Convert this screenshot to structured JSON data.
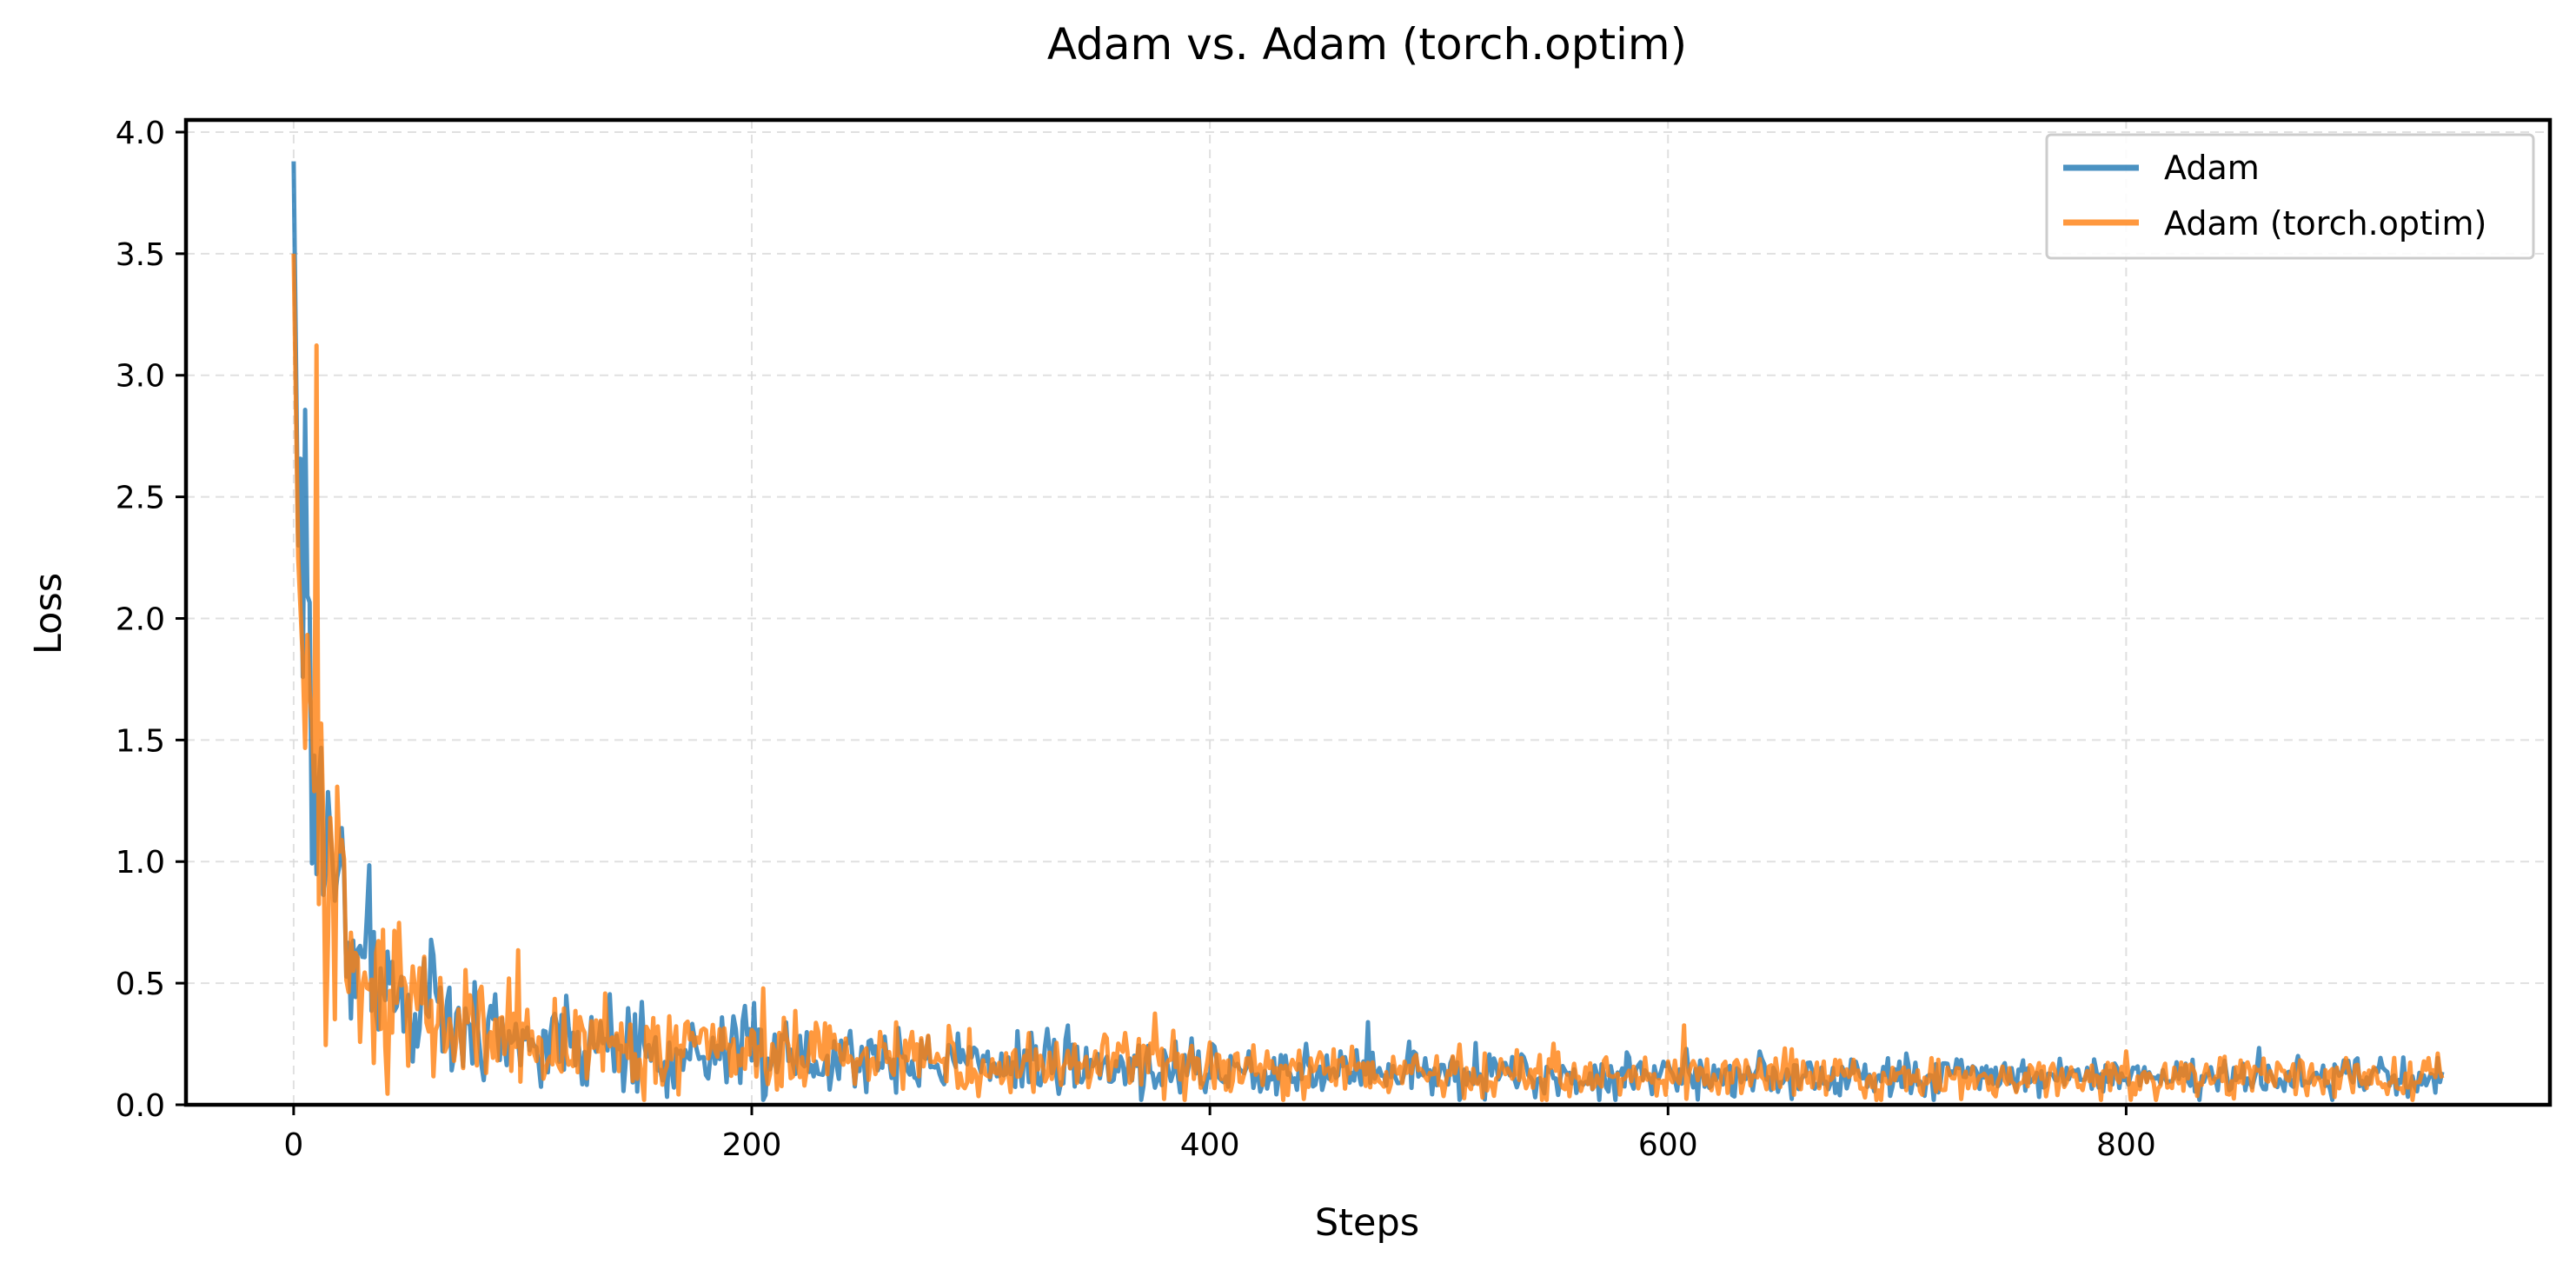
{
  "chart_data": {
    "type": "line",
    "title": "Adam vs. Adam (torch.optim)",
    "xlabel": "Steps",
    "ylabel": "Loss",
    "xlim": [
      -47,
      985
    ],
    "ylim": [
      0.0,
      4.05
    ],
    "xticks": [
      0,
      200,
      400,
      600,
      800
    ],
    "xtick_labels": [
      "0",
      "200",
      "400",
      "600",
      "800"
    ],
    "yticks": [
      0.0,
      0.5,
      1.0,
      1.5,
      2.0,
      2.5,
      3.0,
      3.5,
      4.0
    ],
    "ytick_labels": [
      "0.0",
      "0.5",
      "1.0",
      "1.5",
      "2.0",
      "2.5",
      "3.0",
      "3.5",
      "4.0"
    ],
    "grid": true,
    "legend_position": "top-right",
    "total_steps": 938,
    "series": [
      {
        "name": "Adam",
        "color": "#1f77b4",
        "anchors": [
          [
            0,
            3.88
          ],
          [
            2,
            2.3
          ],
          [
            5,
            2.05
          ],
          [
            8,
            1.72
          ],
          [
            12,
            1.2
          ],
          [
            16,
            0.95
          ],
          [
            22,
            0.72
          ],
          [
            30,
            0.55
          ],
          [
            45,
            0.45
          ],
          [
            60,
            0.35
          ],
          [
            80,
            0.3
          ],
          [
            100,
            0.27
          ],
          [
            130,
            0.24
          ],
          [
            160,
            0.22
          ],
          [
            200,
            0.21
          ],
          [
            250,
            0.19
          ],
          [
            300,
            0.17
          ],
          [
            350,
            0.16
          ],
          [
            400,
            0.15
          ],
          [
            450,
            0.14
          ],
          [
            500,
            0.12
          ],
          [
            600,
            0.12
          ],
          [
            700,
            0.11
          ],
          [
            800,
            0.11
          ],
          [
            938,
            0.11
          ]
        ],
        "noise_seed": 7
      },
      {
        "name": "Adam (torch.optim)",
        "color": "#ff7f0e",
        "anchors": [
          [
            0,
            3.5
          ],
          [
            2,
            2.25
          ],
          [
            5,
            2.0
          ],
          [
            8,
            1.6
          ],
          [
            12,
            1.15
          ],
          [
            16,
            0.9
          ],
          [
            22,
            0.7
          ],
          [
            30,
            0.53
          ],
          [
            45,
            0.43
          ],
          [
            60,
            0.34
          ],
          [
            80,
            0.3
          ],
          [
            100,
            0.27
          ],
          [
            130,
            0.24
          ],
          [
            160,
            0.22
          ],
          [
            200,
            0.21
          ],
          [
            250,
            0.19
          ],
          [
            300,
            0.17
          ],
          [
            350,
            0.16
          ],
          [
            400,
            0.15
          ],
          [
            450,
            0.14
          ],
          [
            500,
            0.12
          ],
          [
            600,
            0.12
          ],
          [
            700,
            0.11
          ],
          [
            800,
            0.11
          ],
          [
            938,
            0.11
          ]
        ],
        "noise_seed": 13
      }
    ]
  }
}
